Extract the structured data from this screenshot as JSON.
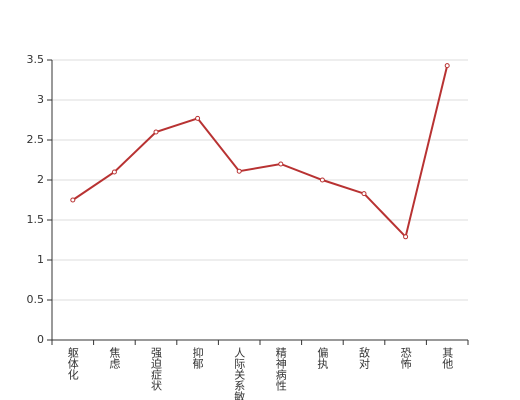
{
  "chart_data": {
    "type": "line",
    "categories": [
      "躯体化",
      "焦虑",
      "强迫症状",
      "抑郁",
      "人际关系敏感",
      "精神病性",
      "偏执",
      "敌对",
      "恐怖",
      "其他"
    ],
    "values": [
      1.75,
      2.1,
      2.6,
      2.77,
      2.11,
      2.2,
      2.0,
      1.83,
      1.29,
      3.43
    ],
    "color": "#b83232",
    "ylim": [
      0,
      3.5
    ],
    "yticks": [
      0,
      0.5,
      1,
      1.5,
      2,
      2.5,
      3,
      3.5
    ],
    "grid": true
  }
}
